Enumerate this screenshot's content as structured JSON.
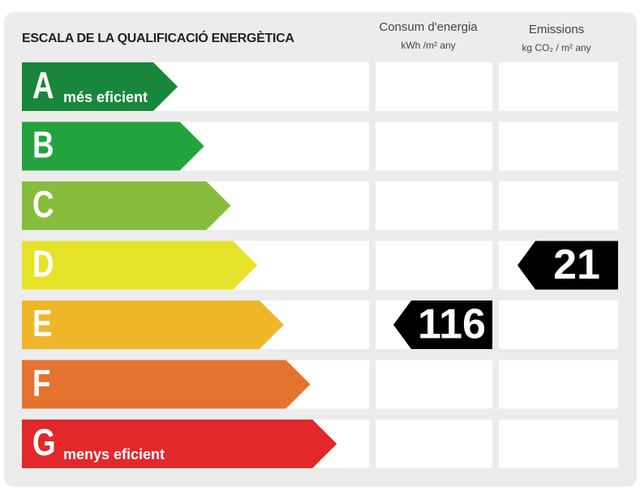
{
  "title": "ESCALA DE LA QUALIFICACIÓ ENERGÈTICA",
  "columns": [
    {
      "title": "Consum d'energia",
      "unit": "kWh /m² any"
    },
    {
      "title": "Emissions",
      "unit": "kg CO₂ / m² any"
    }
  ],
  "ratings": [
    {
      "letter": "A",
      "label": "més eficient",
      "color": "#19873b"
    },
    {
      "letter": "B",
      "color": "#23a33e"
    },
    {
      "letter": "C",
      "color": "#86bd3c"
    },
    {
      "letter": "D",
      "color": "#e6e22a"
    },
    {
      "letter": "E",
      "color": "#f0b62a"
    },
    {
      "letter": "F",
      "color": "#e47330"
    },
    {
      "letter": "G",
      "label": "menys eficient",
      "color": "#e2282a"
    }
  ],
  "results": [
    {
      "rating": "E",
      "value": 116
    },
    {
      "rating": "D",
      "value": 21
    }
  ]
}
